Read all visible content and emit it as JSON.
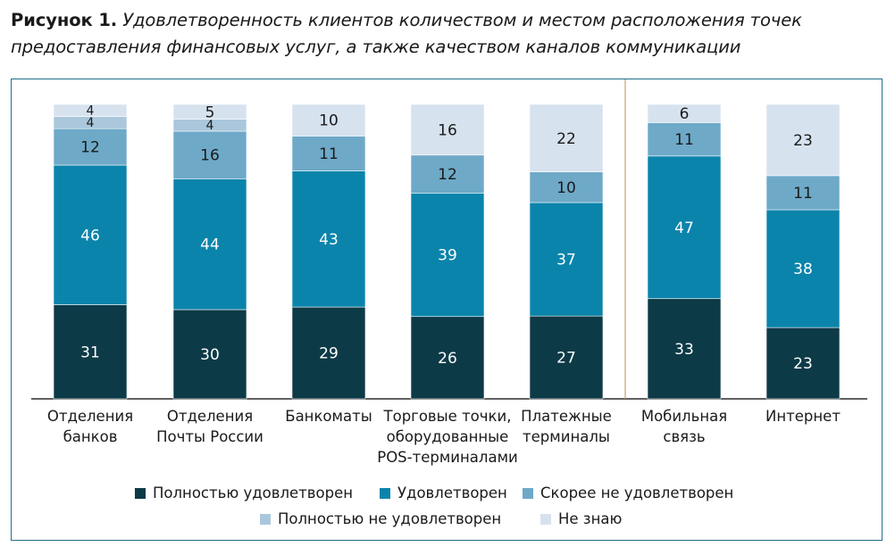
{
  "caption": {
    "number": "Рисунок 1.",
    "text": "Удовлетворенность клиентов количеством и местом расположения точек предоставления финансовых услуг, а также качеством каналов коммуникации"
  },
  "chart_data": {
    "type": "bar",
    "stacked": true,
    "percent": true,
    "categories": [
      [
        "Отделения",
        "банков"
      ],
      [
        "Отделения",
        "Почты России"
      ],
      [
        "Банкоматы"
      ],
      [
        "Торговые точки,",
        "оборудованные",
        "POS-терминалами"
      ],
      [
        "Платежные",
        "терминалы"
      ],
      [
        "Мобильная",
        "связь"
      ],
      [
        "Интернет"
      ]
    ],
    "series": [
      {
        "name": "Полностью удовлетворен",
        "color": "#0d3a47",
        "label_color": "#ffffff",
        "values": [
          31,
          30,
          29,
          26,
          27,
          33,
          23
        ]
      },
      {
        "name": "Удовлетворен",
        "color": "#0b84ab",
        "label_color": "#ffffff",
        "values": [
          46,
          44,
          43,
          39,
          37,
          47,
          38
        ]
      },
      {
        "name": "Скорее не удовлетворен",
        "color": "#6ea9c8",
        "label_color": "#1a1a1a",
        "values": [
          12,
          16,
          11,
          12,
          10,
          11,
          11
        ]
      },
      {
        "name": "Полностью не удовлетворен",
        "color": "#aac7dc",
        "label_color": "#1a1a1a",
        "values": [
          4,
          4,
          0,
          0,
          0,
          0,
          0
        ]
      },
      {
        "name": "Не знаю",
        "color": "#d6e2ee",
        "label_color": "#1a1a1a",
        "values": [
          4,
          5,
          10,
          16,
          22,
          6,
          23
        ]
      }
    ],
    "separator_after_category": 4,
    "separator_color": "#c9a06a",
    "legend_position": "bottom"
  }
}
